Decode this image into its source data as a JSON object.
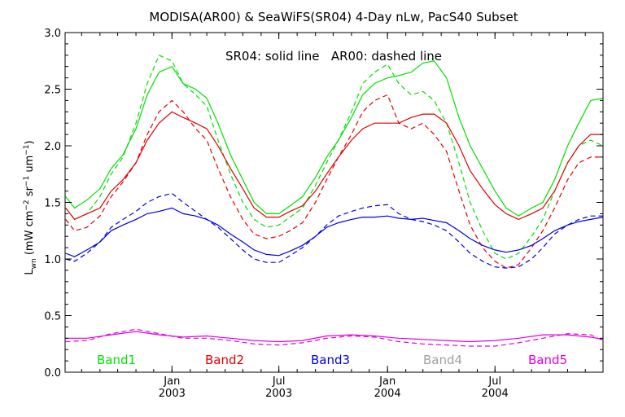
{
  "chart_data": {
    "type": "line",
    "title": "MODISA(AR00) & SeaWiFS(SR04) 4-Day nLw, PacS40 Subset",
    "annotation": "SR04: solid line   AR00: dashed line",
    "ylabel": "L_wn (mW cm^-2 sr^-1 um^-1)",
    "ylabel_parts": [
      "L",
      "wn",
      " (mW cm",
      "−2",
      " sr",
      "−1",
      " um",
      "−1",
      ")"
    ],
    "xlim": [
      "2002-07-04",
      "2004-12-31"
    ],
    "ylim": [
      0.0,
      3.0
    ],
    "ytick_labels": [
      "0.0",
      "0.5",
      "1.0",
      "1.5",
      "2.0",
      "2.5",
      "3.0"
    ],
    "xticks": [
      {
        "date": "2003-01-01",
        "month": "Jan",
        "year": "2003"
      },
      {
        "date": "2003-07-01",
        "month": "Jul",
        "year": "2003"
      },
      {
        "date": "2004-01-01",
        "month": "Jan",
        "year": "2004"
      },
      {
        "date": "2004-07-01",
        "month": "Jul",
        "year": "2004"
      }
    ],
    "legend": [
      {
        "name": "Band1",
        "color": "#00e000"
      },
      {
        "name": "Band2",
        "color": "#e00000"
      },
      {
        "name": "Band3",
        "color": "#0000e0"
      },
      {
        "name": "Band4",
        "color": "#a0a0a0"
      },
      {
        "name": "Band5",
        "color": "#e000e0"
      }
    ],
    "series": [
      {
        "band": "Band1",
        "style": "solid",
        "color": "#00e000",
        "x": [
          "2002-07-05",
          "2002-07-20",
          "2002-08-10",
          "2002-09-01",
          "2002-09-20",
          "2002-10-10",
          "2002-11-01",
          "2002-11-20",
          "2002-12-10",
          "2003-01-01",
          "2003-01-20",
          "2003-02-10",
          "2003-03-01",
          "2003-03-20",
          "2003-04-10",
          "2003-05-01",
          "2003-05-20",
          "2003-06-10",
          "2003-07-01",
          "2003-07-20",
          "2003-08-10",
          "2003-09-01",
          "2003-09-20",
          "2003-10-10",
          "2003-11-01",
          "2003-11-20",
          "2003-12-10",
          "2004-01-01",
          "2004-01-20",
          "2004-02-10",
          "2004-03-01",
          "2004-03-20",
          "2004-04-10",
          "2004-05-01",
          "2004-05-20",
          "2004-06-10",
          "2004-07-01",
          "2004-07-20",
          "2004-08-10",
          "2004-09-01",
          "2004-09-20",
          "2004-10-10",
          "2004-11-01",
          "2004-11-20",
          "2004-12-10",
          "2004-12-31"
        ],
        "y": [
          1.55,
          1.45,
          1.52,
          1.62,
          1.8,
          1.92,
          2.15,
          2.45,
          2.65,
          2.7,
          2.55,
          2.5,
          2.42,
          2.2,
          1.92,
          1.7,
          1.5,
          1.4,
          1.4,
          1.47,
          1.55,
          1.72,
          1.9,
          2.05,
          2.25,
          2.45,
          2.55,
          2.6,
          2.62,
          2.65,
          2.73,
          2.75,
          2.6,
          2.25,
          2.0,
          1.8,
          1.6,
          1.45,
          1.38,
          1.45,
          1.5,
          1.7,
          2.0,
          2.2,
          2.4,
          2.42
        ]
      },
      {
        "band": "Band1",
        "style": "dashed",
        "color": "#00e000",
        "x": [
          "2002-07-05",
          "2002-07-20",
          "2002-08-10",
          "2002-09-01",
          "2002-09-20",
          "2002-10-10",
          "2002-11-01",
          "2002-11-20",
          "2002-12-10",
          "2003-01-01",
          "2003-01-20",
          "2003-02-10",
          "2003-03-01",
          "2003-03-20",
          "2003-04-10",
          "2003-05-01",
          "2003-05-20",
          "2003-06-10",
          "2003-07-01",
          "2003-07-20",
          "2003-08-10",
          "2003-09-01",
          "2003-09-20",
          "2003-10-10",
          "2003-11-01",
          "2003-11-20",
          "2003-12-10",
          "2004-01-01",
          "2004-01-20",
          "2004-02-10",
          "2004-03-01",
          "2004-03-20",
          "2004-04-10",
          "2004-05-01",
          "2004-05-20",
          "2004-06-10",
          "2004-07-01",
          "2004-07-20",
          "2004-08-10",
          "2004-09-01",
          "2004-09-20",
          "2004-10-10",
          "2004-11-01",
          "2004-11-20",
          "2004-12-10",
          "2004-12-31"
        ],
        "y": [
          1.45,
          1.35,
          1.4,
          1.55,
          1.75,
          1.9,
          2.2,
          2.55,
          2.8,
          2.75,
          2.55,
          2.45,
          2.35,
          2.05,
          1.75,
          1.5,
          1.35,
          1.28,
          1.3,
          1.37,
          1.45,
          1.65,
          1.85,
          2.05,
          2.3,
          2.55,
          2.65,
          2.72,
          2.55,
          2.45,
          2.48,
          2.4,
          2.2,
          1.85,
          1.5,
          1.25,
          1.05,
          1.0,
          1.05,
          1.2,
          1.35,
          1.6,
          1.85,
          2.0,
          2.05,
          2.0
        ]
      },
      {
        "band": "Band2",
        "style": "solid",
        "color": "#e00000",
        "x": [
          "2002-07-05",
          "2002-07-20",
          "2002-08-10",
          "2002-09-01",
          "2002-09-20",
          "2002-10-10",
          "2002-11-01",
          "2002-11-20",
          "2002-12-10",
          "2003-01-01",
          "2003-01-20",
          "2003-02-10",
          "2003-03-01",
          "2003-03-20",
          "2003-04-10",
          "2003-05-01",
          "2003-05-20",
          "2003-06-10",
          "2003-07-01",
          "2003-07-20",
          "2003-08-10",
          "2003-09-01",
          "2003-09-20",
          "2003-10-10",
          "2003-11-01",
          "2003-11-20",
          "2003-12-10",
          "2004-01-01",
          "2004-01-20",
          "2004-02-10",
          "2004-03-01",
          "2004-03-20",
          "2004-04-10",
          "2004-05-01",
          "2004-05-20",
          "2004-06-10",
          "2004-07-01",
          "2004-07-20",
          "2004-08-10",
          "2004-09-01",
          "2004-09-20",
          "2004-10-10",
          "2004-11-01",
          "2004-11-20",
          "2004-12-10",
          "2004-12-31"
        ],
        "y": [
          1.45,
          1.35,
          1.4,
          1.45,
          1.6,
          1.7,
          1.85,
          2.05,
          2.2,
          2.3,
          2.25,
          2.2,
          2.15,
          2.0,
          1.8,
          1.62,
          1.45,
          1.37,
          1.37,
          1.42,
          1.47,
          1.6,
          1.75,
          1.9,
          2.05,
          2.15,
          2.2,
          2.2,
          2.2,
          2.25,
          2.28,
          2.28,
          2.2,
          2.0,
          1.78,
          1.62,
          1.48,
          1.4,
          1.35,
          1.4,
          1.45,
          1.6,
          1.85,
          2.0,
          2.1,
          2.1
        ]
      },
      {
        "band": "Band2",
        "style": "dashed",
        "color": "#e00000",
        "x": [
          "2002-07-05",
          "2002-07-20",
          "2002-08-10",
          "2002-09-01",
          "2002-09-20",
          "2002-10-10",
          "2002-11-01",
          "2002-11-20",
          "2002-12-10",
          "2003-01-01",
          "2003-01-20",
          "2003-02-10",
          "2003-03-01",
          "2003-03-20",
          "2003-04-10",
          "2003-05-01",
          "2003-05-20",
          "2003-06-10",
          "2003-07-01",
          "2003-07-20",
          "2003-08-10",
          "2003-09-01",
          "2003-09-20",
          "2003-10-10",
          "2003-11-01",
          "2003-11-20",
          "2003-12-10",
          "2004-01-01",
          "2004-01-20",
          "2004-02-10",
          "2004-03-01",
          "2004-03-20",
          "2004-04-10",
          "2004-05-01",
          "2004-05-20",
          "2004-06-10",
          "2004-07-01",
          "2004-07-20",
          "2004-08-10",
          "2004-09-01",
          "2004-09-20",
          "2004-10-10",
          "2004-11-01",
          "2004-11-20",
          "2004-12-10",
          "2004-12-31"
        ],
        "y": [
          1.35,
          1.25,
          1.28,
          1.38,
          1.55,
          1.68,
          1.85,
          2.1,
          2.3,
          2.4,
          2.3,
          2.15,
          2.05,
          1.8,
          1.55,
          1.35,
          1.22,
          1.18,
          1.2,
          1.25,
          1.32,
          1.5,
          1.7,
          1.9,
          2.1,
          2.3,
          2.4,
          2.45,
          2.2,
          2.15,
          2.2,
          2.1,
          1.95,
          1.6,
          1.3,
          1.1,
          0.98,
          0.92,
          0.95,
          1.1,
          1.25,
          1.45,
          1.7,
          1.85,
          1.9,
          1.9
        ]
      },
      {
        "band": "Band3",
        "style": "solid",
        "color": "#0000e0",
        "x": [
          "2002-07-05",
          "2002-07-20",
          "2002-08-10",
          "2002-09-01",
          "2002-09-20",
          "2002-10-10",
          "2002-11-01",
          "2002-11-20",
          "2002-12-10",
          "2003-01-01",
          "2003-01-20",
          "2003-02-10",
          "2003-03-01",
          "2003-03-20",
          "2003-04-10",
          "2003-05-01",
          "2003-05-20",
          "2003-06-10",
          "2003-07-01",
          "2003-07-20",
          "2003-08-10",
          "2003-09-01",
          "2003-09-20",
          "2003-10-10",
          "2003-11-01",
          "2003-11-20",
          "2003-12-10",
          "2004-01-01",
          "2004-01-20",
          "2004-02-10",
          "2004-03-01",
          "2004-03-20",
          "2004-04-10",
          "2004-05-01",
          "2004-05-20",
          "2004-06-10",
          "2004-07-01",
          "2004-07-20",
          "2004-08-10",
          "2004-09-01",
          "2004-09-20",
          "2004-10-10",
          "2004-11-01",
          "2004-11-20",
          "2004-12-10",
          "2004-12-31"
        ],
        "y": [
          1.05,
          1.02,
          1.08,
          1.15,
          1.25,
          1.3,
          1.35,
          1.4,
          1.42,
          1.45,
          1.4,
          1.38,
          1.35,
          1.3,
          1.22,
          1.15,
          1.08,
          1.04,
          1.03,
          1.07,
          1.12,
          1.2,
          1.28,
          1.32,
          1.35,
          1.37,
          1.37,
          1.38,
          1.36,
          1.35,
          1.36,
          1.34,
          1.32,
          1.25,
          1.18,
          1.12,
          1.08,
          1.06,
          1.08,
          1.12,
          1.18,
          1.25,
          1.3,
          1.33,
          1.35,
          1.37
        ]
      },
      {
        "band": "Band3",
        "style": "dashed",
        "color": "#0000e0",
        "x": [
          "2002-07-05",
          "2002-07-20",
          "2002-08-10",
          "2002-09-01",
          "2002-09-20",
          "2002-10-10",
          "2002-11-01",
          "2002-11-20",
          "2002-12-10",
          "2003-01-01",
          "2003-01-20",
          "2003-02-10",
          "2003-03-01",
          "2003-03-20",
          "2003-04-10",
          "2003-05-01",
          "2003-05-20",
          "2003-06-10",
          "2003-07-01",
          "2003-07-20",
          "2003-08-10",
          "2003-09-01",
          "2003-09-20",
          "2003-10-10",
          "2003-11-01",
          "2003-11-20",
          "2003-12-10",
          "2004-01-01",
          "2004-01-20",
          "2004-02-10",
          "2004-03-01",
          "2004-03-20",
          "2004-04-10",
          "2004-05-01",
          "2004-05-20",
          "2004-06-10",
          "2004-07-01",
          "2004-07-20",
          "2004-08-10",
          "2004-09-01",
          "2004-09-20",
          "2004-10-10",
          "2004-11-01",
          "2004-11-20",
          "2004-12-10",
          "2004-12-31"
        ],
        "y": [
          1.0,
          0.98,
          1.05,
          1.15,
          1.28,
          1.35,
          1.42,
          1.5,
          1.55,
          1.58,
          1.5,
          1.42,
          1.35,
          1.28,
          1.18,
          1.08,
          1.0,
          0.97,
          0.97,
          1.03,
          1.1,
          1.2,
          1.3,
          1.38,
          1.42,
          1.45,
          1.47,
          1.48,
          1.4,
          1.35,
          1.33,
          1.3,
          1.25,
          1.15,
          1.05,
          0.98,
          0.93,
          0.92,
          0.93,
          1.0,
          1.1,
          1.22,
          1.3,
          1.35,
          1.38,
          1.38
        ]
      },
      {
        "band": "Band5",
        "style": "solid",
        "color": "#e000e0",
        "x": [
          "2002-07-05",
          "2002-08-10",
          "2002-09-20",
          "2002-11-01",
          "2002-12-10",
          "2003-01-20",
          "2003-03-01",
          "2003-04-10",
          "2003-05-20",
          "2003-07-01",
          "2003-08-10",
          "2003-09-20",
          "2003-11-01",
          "2003-12-10",
          "2004-01-20",
          "2004-03-01",
          "2004-04-10",
          "2004-05-20",
          "2004-07-01",
          "2004-08-10",
          "2004-09-20",
          "2004-11-01",
          "2004-12-10",
          "2004-12-31"
        ],
        "y": [
          0.3,
          0.3,
          0.33,
          0.36,
          0.33,
          0.31,
          0.32,
          0.3,
          0.28,
          0.27,
          0.28,
          0.32,
          0.33,
          0.32,
          0.3,
          0.29,
          0.28,
          0.27,
          0.28,
          0.3,
          0.33,
          0.33,
          0.31,
          0.29
        ]
      },
      {
        "band": "Band5",
        "style": "dashed",
        "color": "#e000e0",
        "x": [
          "2002-07-05",
          "2002-08-10",
          "2002-09-20",
          "2002-11-01",
          "2002-12-10",
          "2003-01-20",
          "2003-03-01",
          "2003-04-10",
          "2003-05-20",
          "2003-07-01",
          "2003-08-10",
          "2003-09-20",
          "2003-11-01",
          "2003-12-10",
          "2004-01-20",
          "2004-03-01",
          "2004-04-10",
          "2004-05-20",
          "2004-07-01",
          "2004-08-10",
          "2004-09-20",
          "2004-11-01",
          "2004-12-10",
          "2004-12-31"
        ],
        "y": [
          0.27,
          0.28,
          0.34,
          0.38,
          0.34,
          0.3,
          0.3,
          0.28,
          0.25,
          0.24,
          0.26,
          0.3,
          0.32,
          0.31,
          0.27,
          0.25,
          0.24,
          0.23,
          0.23,
          0.26,
          0.3,
          0.34,
          0.33,
          0.28
        ]
      }
    ]
  }
}
